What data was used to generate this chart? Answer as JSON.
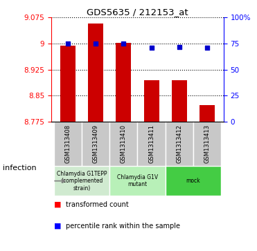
{
  "title": "GDS5635 / 212153_at",
  "samples": [
    "GSM1313408",
    "GSM1313409",
    "GSM1313410",
    "GSM1313411",
    "GSM1313412",
    "GSM1313413"
  ],
  "transformed_counts": [
    8.995,
    9.057,
    9.001,
    8.895,
    8.895,
    8.822
  ],
  "percentile_ranks": [
    75,
    75,
    75,
    71,
    72,
    71
  ],
  "ymin": 8.775,
  "ymax": 9.075,
  "yticks": [
    8.775,
    8.85,
    8.925,
    9.0,
    9.075
  ],
  "ytick_labels": [
    "8.775",
    "8.85",
    "8.925",
    "9",
    "9.075"
  ],
  "right_yticks": [
    0,
    25,
    50,
    75,
    100
  ],
  "right_ytick_labels": [
    "0",
    "25",
    "50",
    "75",
    "100%"
  ],
  "bar_color": "#cc0000",
  "dot_color": "#0000cc",
  "bar_width": 0.55,
  "groups": [
    {
      "label": "Chlamydia G1TEPP\n(complemented\nstrain)",
      "indices": [
        0,
        1
      ],
      "color": "#d0ead0"
    },
    {
      "label": "Chlamydia G1V\nmutant",
      "indices": [
        2,
        3
      ],
      "color": "#b8f0b8"
    },
    {
      "label": "mock",
      "indices": [
        4,
        5
      ],
      "color": "#44cc44"
    }
  ],
  "gray_box_color": "#c8c8c8",
  "infection_label": "infection"
}
